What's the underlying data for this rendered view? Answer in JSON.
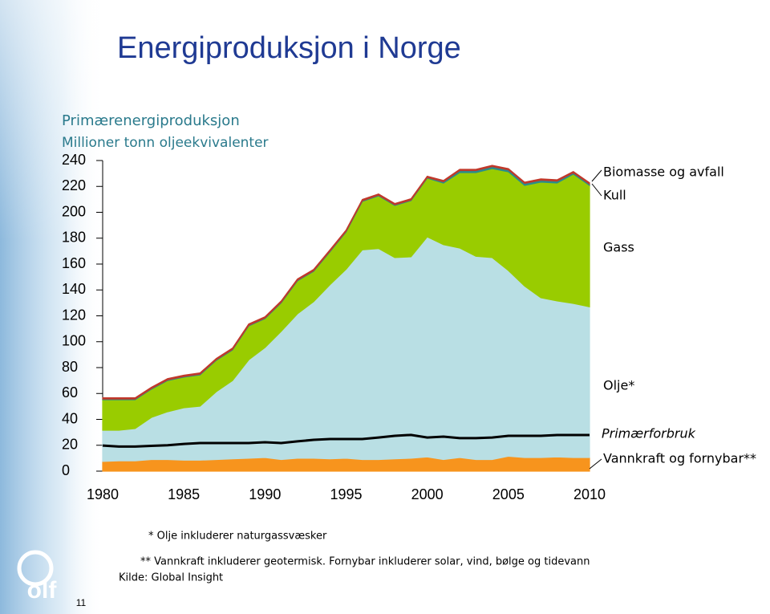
{
  "page": {
    "title": "Energiproduksjon i Norge",
    "page_number": "11",
    "logo": "olf"
  },
  "chart_data": {
    "type": "stacked-area",
    "title": "Primærenergiproduksjon",
    "subtitle": "Millioner tonn oljeekvivalenter",
    "x": [
      1980,
      1981,
      1982,
      1983,
      1984,
      1985,
      1986,
      1987,
      1988,
      1989,
      1990,
      1991,
      1992,
      1993,
      1994,
      1995,
      1996,
      1997,
      1998,
      1999,
      2000,
      2001,
      2002,
      2003,
      2004,
      2005,
      2006,
      2007,
      2008,
      2009,
      2010
    ],
    "xlim": [
      1980,
      2010
    ],
    "xticks": [
      1980,
      1985,
      1990,
      1995,
      2000,
      2005,
      2010
    ],
    "ylim": [
      0,
      240
    ],
    "yticks": [
      0,
      20,
      40,
      60,
      80,
      100,
      120,
      140,
      160,
      180,
      200,
      220,
      240
    ],
    "series": [
      {
        "name": "Vannkraft og fornybar**",
        "color": "#f7941d",
        "values": [
          7.5,
          8,
          8,
          9,
          9,
          8.5,
          8.5,
          9,
          9.5,
          10,
          10.5,
          9,
          10,
          10,
          9.5,
          10,
          9,
          9,
          9.5,
          10,
          11,
          9,
          10.5,
          9,
          9,
          11.5,
          10.5,
          10.5,
          11,
          10.5,
          10.5
        ]
      },
      {
        "name": "Olje*",
        "color": "#b9dfe4",
        "values": [
          24.1,
          23.6,
          24.9,
          32.5,
          36.9,
          40.5,
          41.7,
          52.4,
          60.5,
          76,
          85,
          99,
          111.5,
          121,
          134.5,
          146,
          162,
          163,
          155.5,
          155.6,
          170,
          166,
          161.9,
          157,
          156,
          143.5,
          132.5,
          123.5,
          120.5,
          119.1,
          116.5
        ]
      },
      {
        "name": "Gass",
        "color": "#99cc00",
        "values": [
          23.6,
          23.6,
          22.3,
          21.8,
          24.1,
          23.6,
          24.2,
          24.2,
          23.6,
          26.2,
          22.3,
          22,
          25.5,
          23.4,
          25.4,
          28.8,
          37.4,
          40.7,
          40.3,
          43.4,
          45.4,
          47.6,
          58.3,
          64.7,
          68.8,
          76.3,
          77.8,
          89.3,
          91.1,
          99.9,
          93.8
        ]
      },
      {
        "name": "Kull",
        "color": "#2a8c8c",
        "values": [
          0.5,
          0.5,
          0.5,
          0.5,
          0.5,
          0.5,
          0.5,
          0.5,
          0.5,
          0.5,
          0.5,
          0.5,
          0.5,
          0.5,
          0.5,
          0.5,
          0.5,
          0.5,
          0.5,
          0.5,
          0.5,
          1,
          1.5,
          1.5,
          1.5,
          1.5,
          1.5,
          1.5,
          1.5,
          1,
          1
        ]
      },
      {
        "name": "Biomasse og avfall",
        "color": "#c0392b",
        "values": [
          1,
          1,
          1,
          1,
          1,
          1,
          1,
          1,
          1,
          1,
          1,
          1,
          1,
          1,
          1,
          1,
          1,
          1,
          1,
          1,
          1,
          1,
          1,
          1,
          1,
          1,
          1,
          1,
          1,
          1,
          1
        ]
      },
      {
        "name": "Primærforbruk",
        "type": "line",
        "color": "#000000",
        "values": [
          19.8,
          19,
          19,
          19.5,
          20,
          21,
          21.7,
          21.7,
          21.7,
          21.7,
          22.3,
          21.7,
          23,
          24.2,
          24.8,
          24.8,
          24.8,
          26,
          27.3,
          28,
          26,
          26.7,
          25.5,
          25.5,
          26,
          27.3,
          27.3,
          27.3,
          27.9,
          27.9,
          27.9
        ]
      }
    ],
    "footnotes": [
      "* Olje inkluderer naturgassvæsker",
      "** Vannkraft inkluderer geotermisk. Fornybar inkluderer solar, vind, bølge og tidevann",
      "Kilde: Global Insight"
    ]
  }
}
